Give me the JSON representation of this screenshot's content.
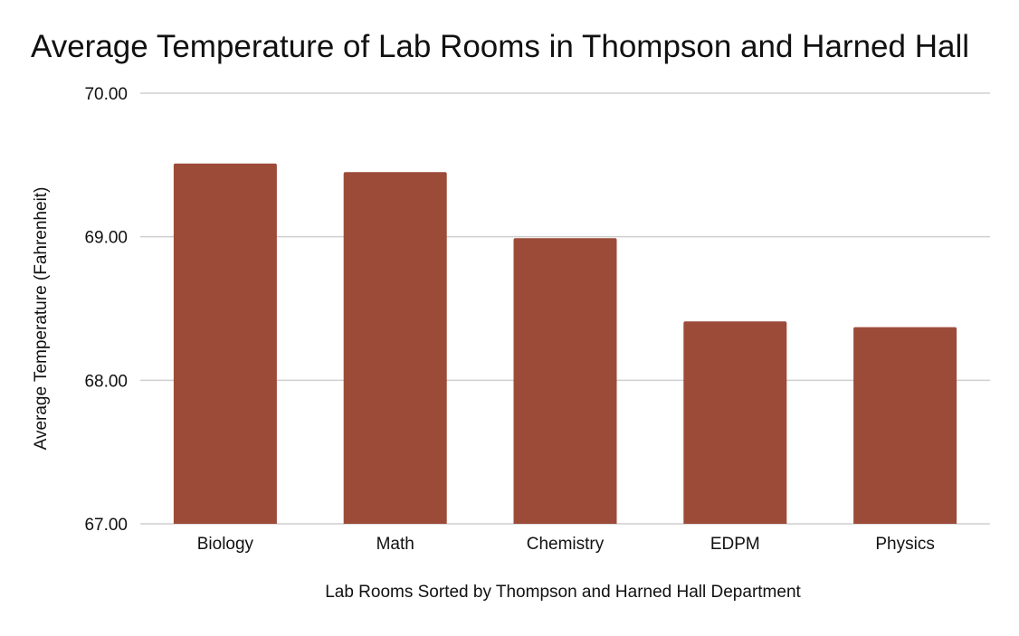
{
  "chart_data": {
    "type": "bar",
    "title": "Average Temperature of Lab Rooms in Thompson and Harned Hall",
    "xlabel": "Lab Rooms Sorted by Thompson and Harned Hall Department",
    "ylabel": "Average Temperature (Fahrenheit)",
    "categories": [
      "Biology",
      "Math",
      "Chemistry",
      "EDPM",
      "Physics"
    ],
    "values": [
      69.51,
      69.45,
      68.99,
      68.41,
      68.37
    ],
    "ylim": [
      67,
      70
    ],
    "yticks": [
      67,
      68,
      69,
      70
    ],
    "ytick_labels": [
      "67.00",
      "68.00",
      "69.00",
      "70.00"
    ],
    "grid": true,
    "bar_color": "#9c4b39"
  }
}
